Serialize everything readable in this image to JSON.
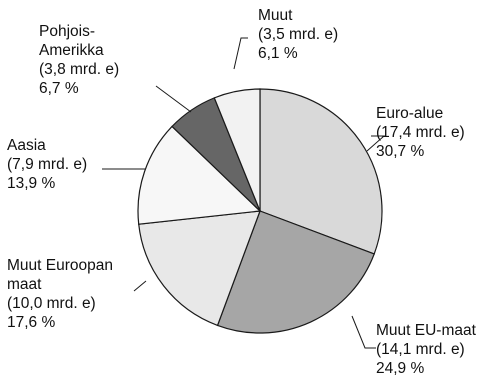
{
  "chart_data": {
    "type": "pie",
    "title": "",
    "start_angle_deg": 0,
    "direction": "clockwise",
    "slices": [
      {
        "name": "Euro-alue",
        "label_lines": [
          "Euro-alue",
          "(17,4 mrd. e)",
          "30,7 %"
        ],
        "amount": 17.4,
        "percent": 30.7,
        "color": "#d9d9d9"
      },
      {
        "name": "Muut EU-maat",
        "label_lines": [
          "Muut EU-maat",
          "(14,1 mrd. e)",
          "24,9 %"
        ],
        "amount": 14.1,
        "percent": 24.9,
        "color": "#a6a6a6"
      },
      {
        "name": "Muut Euroopan maat",
        "label_lines": [
          "Muut Euroopan",
          "maat",
          "(10,0 mrd. e)",
          "17,6 %"
        ],
        "amount": 10.0,
        "percent": 17.6,
        "color": "#e8e8e8"
      },
      {
        "name": "Aasia",
        "label_lines": [
          "Aasia",
          "(7,9 mrd. e)",
          "13,9 %"
        ],
        "amount": 7.9,
        "percent": 13.9,
        "color": "#f7f7f7"
      },
      {
        "name": "Pohjois-Amerikka",
        "label_lines": [
          "Pohjois-",
          "Amerikka",
          "(3,8 mrd. e)",
          "6,7 %"
        ],
        "amount": 3.8,
        "percent": 6.7,
        "color": "#666666"
      },
      {
        "name": "Muut",
        "label_lines": [
          "Muut",
          "(3,5 mrd. e)",
          "6,1 %"
        ],
        "amount": 3.5,
        "percent": 6.1,
        "color": "#f2f2f2"
      }
    ]
  }
}
